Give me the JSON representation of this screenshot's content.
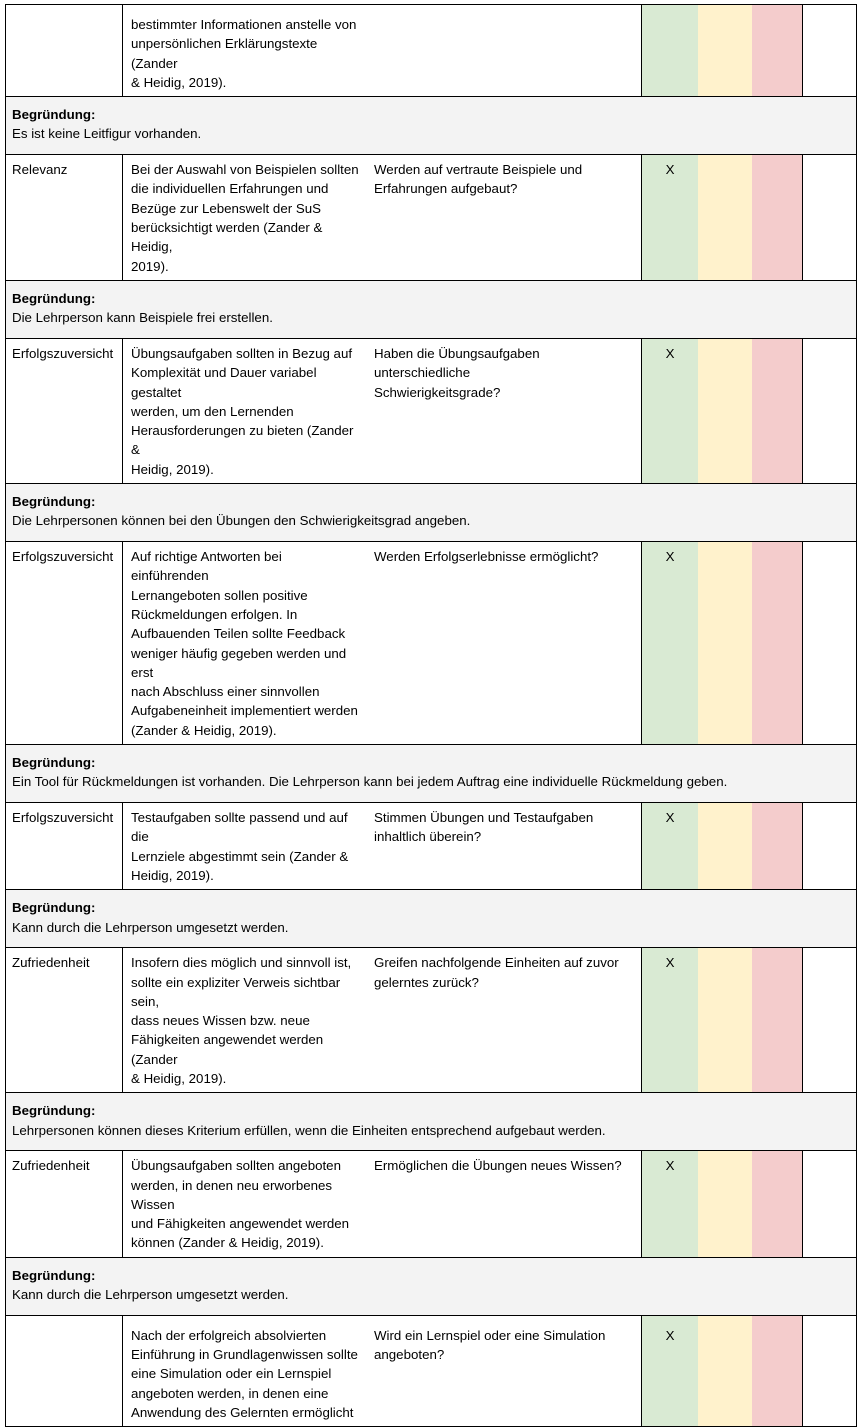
{
  "colors": {
    "green": "#d9ead3",
    "yellow": "#fff2cc",
    "red": "#f4cccc",
    "justification_bg": "#f3f3f3",
    "border": "#000000"
  },
  "table": {
    "justification_label": "Begründung:",
    "rows": [
      {
        "type": "criteria",
        "criterion": "",
        "description": "bestimmter Informationen anstelle von\nunpersönlichen Erklärungstexte (Zander\n& Heidig, 2019).",
        "question": "",
        "mark_green": "",
        "mark_yellow": "",
        "mark_red": ""
      },
      {
        "type": "justification",
        "text": "Es ist keine Leitfigur vorhanden."
      },
      {
        "type": "criteria",
        "criterion": "Relevanz",
        "description": "Bei der Auswahl von Beispielen sollten\ndie individuellen Erfahrungen und\nBezüge zur Lebenswelt der SuS\nberücksichtigt werden (Zander & Heidig,\n2019).",
        "question": "Werden auf vertraute Beispiele und\nErfahrungen aufgebaut?",
        "mark_green": "X",
        "mark_yellow": "",
        "mark_red": ""
      },
      {
        "type": "justification",
        "text": "Die Lehrperson kann Beispiele frei erstellen."
      },
      {
        "type": "criteria",
        "criterion": "Erfolgszuversicht",
        "description": "Übungsaufgaben sollten in Bezug auf\nKomplexität und Dauer variabel gestaltet\nwerden, um den Lernenden\nHerausforderungen zu bieten (Zander &\nHeidig, 2019).",
        "question": "Haben die Übungsaufgaben unterschiedliche\nSchwierigkeitsgrade?",
        "mark_green": "X",
        "mark_yellow": "",
        "mark_red": ""
      },
      {
        "type": "justification",
        "text": "Die Lehrpersonen können bei den Übungen den Schwierigkeitsgrad angeben."
      },
      {
        "type": "criteria",
        "criterion": "Erfolgszuversicht",
        "description": "Auf richtige Antworten bei einführenden\nLernangeboten sollen positive\nRückmeldungen erfolgen. In\nAufbauenden Teilen sollte Feedback\nweniger häufig gegeben werden und erst\nnach Abschluss einer sinnvollen\nAufgabeneinheit implementiert werden\n(Zander & Heidig, 2019).",
        "question": "Werden Erfolgserlebnisse ermöglicht?",
        "mark_green": "X",
        "mark_yellow": "",
        "mark_red": ""
      },
      {
        "type": "justification",
        "text": "Ein Tool für Rückmeldungen ist vorhanden. Die Lehrperson kann bei jedem Auftrag eine individuelle Rückmeldung geben."
      },
      {
        "type": "criteria",
        "criterion": "Erfolgszuversicht",
        "description": "Testaufgaben sollte passend und auf die\nLernziele abgestimmt sein (Zander &\nHeidig, 2019).",
        "question": "Stimmen Übungen und Testaufgaben\ninhaltlich überein?",
        "mark_green": "X",
        "mark_yellow": "",
        "mark_red": ""
      },
      {
        "type": "justification",
        "text": "Kann durch die Lehrperson umgesetzt werden."
      },
      {
        "type": "criteria",
        "criterion": "Zufriedenheit",
        "description": "Insofern dies möglich und sinnvoll ist,\nsollte ein expliziter Verweis sichtbar sein,\ndass neues Wissen bzw. neue\nFähigkeiten angewendet werden (Zander\n& Heidig, 2019).",
        "question": "Greifen nachfolgende Einheiten auf zuvor\ngelerntes zurück?",
        "mark_green": "X",
        "mark_yellow": "",
        "mark_red": ""
      },
      {
        "type": "justification",
        "text": "Lehrpersonen können dieses Kriterium erfüllen, wenn die Einheiten entsprechend aufgebaut werden."
      },
      {
        "type": "criteria",
        "criterion": "Zufriedenheit",
        "description": "Übungsaufgaben sollten angeboten\nwerden, in denen neu erworbenes Wissen\nund Fähigkeiten angewendet werden\nkönnen (Zander & Heidig, 2019).",
        "question": "Ermöglichen die Übungen neues Wissen?",
        "mark_green": "X",
        "mark_yellow": "",
        "mark_red": ""
      },
      {
        "type": "justification",
        "text": "Kann durch die Lehrperson umgesetzt werden."
      },
      {
        "type": "criteria",
        "criterion": "",
        "description": "Nach der erfolgreich absolvierten\nEinführung in Grundlagenwissen sollte\neine Simulation oder ein Lernspiel\nangeboten werden, in denen eine\nAnwendung des Gelernten ermöglicht",
        "question": "Wird ein Lernspiel oder eine Simulation\nangeboten?",
        "mark_green": "X",
        "mark_yellow": "",
        "mark_red": ""
      }
    ]
  }
}
